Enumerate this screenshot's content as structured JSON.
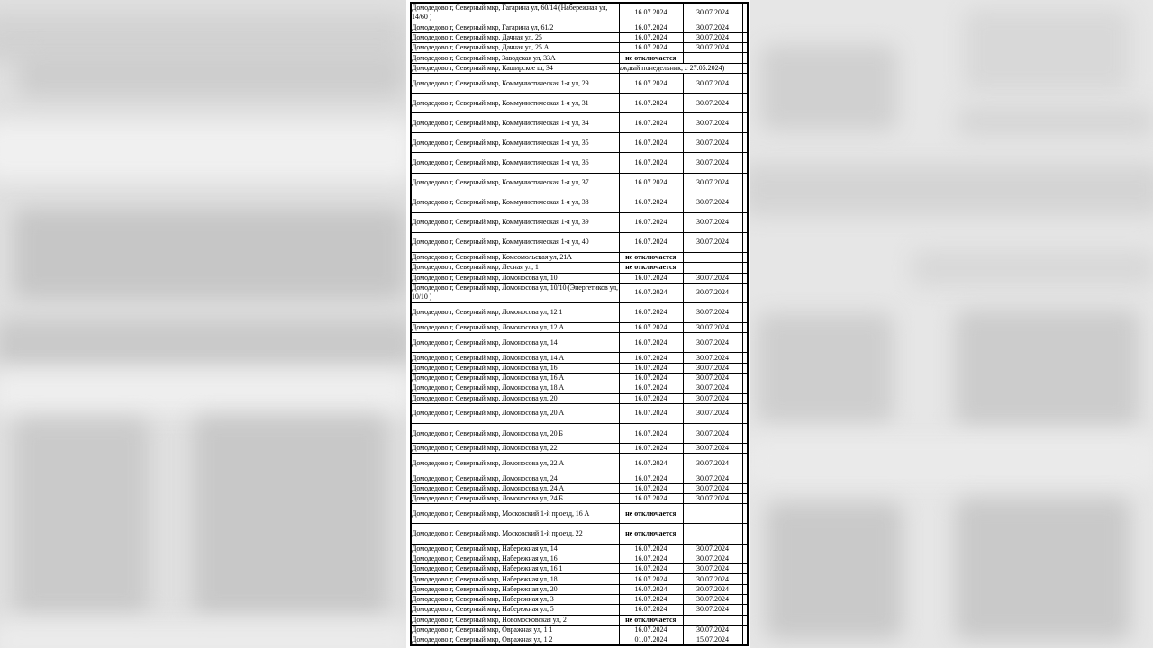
{
  "colors": {
    "table_border": "#000000",
    "table_background": "#ffffff",
    "text": "#000000",
    "backdrop_base": "#e2e2e2",
    "backdrop_blob_dark": "#c7c7c7",
    "backdrop_blob_light": "#efefef"
  },
  "table": {
    "rows": [
      {
        "address": "Домодедово г, Северный мкр, Гагарина ул, 60/14 (Набережная ул, 14/60  )",
        "start": "16.07.2024",
        "end": "30.07.2024",
        "tall": true
      },
      {
        "address": "Домодедово г, Северный мкр, Гагарина ул, 61/2",
        "start": "16.07.2024",
        "end": "30.07.2024"
      },
      {
        "address": "Домодедово г, Северный мкр, Дачная ул, 25",
        "start": "16.07.2024",
        "end": "30.07.2024"
      },
      {
        "address": "Домодедово г, Северный мкр, Дачная ул, 25 А",
        "start": "16.07.2024",
        "end": "30.07.2024"
      },
      {
        "address": "Домодедово г, Северный мкр, Заводская ул, 33А",
        "note": "не отключается"
      },
      {
        "address": "Домодедово г, Северный мкр, Каширское ш, 34",
        "note": "аждый понедельник, с 27.05.2024)",
        "note_span": 2
      },
      {
        "address": "Домодедово г, Северный мкр, Коммунистическая 1-я ул, 29",
        "start": "16.07.2024",
        "end": "30.07.2024",
        "tall": true
      },
      {
        "address": "Домодедово г, Северный мкр, Коммунистическая 1-я ул, 31",
        "start": "16.07.2024",
        "end": "30.07.2024",
        "tall": true
      },
      {
        "address": "Домодедово г, Северный мкр, Коммунистическая 1-я ул, 34",
        "start": "16.07.2024",
        "end": "30.07.2024",
        "tall": true
      },
      {
        "address": "Домодедово г, Северный мкр, Коммунистическая 1-я ул, 35",
        "start": "16.07.2024",
        "end": "30.07.2024",
        "tall": true
      },
      {
        "address": "Домодедово г, Северный мкр, Коммунистическая 1-я ул, 36",
        "start": "16.07.2024",
        "end": "30.07.2024",
        "tall": true
      },
      {
        "address": "Домодедово г, Северный мкр, Коммунистическая 1-я ул, 37",
        "start": "16.07.2024",
        "end": "30.07.2024",
        "tall": true
      },
      {
        "address": "Домодедово г, Северный мкр, Коммунистическая 1-я ул, 38",
        "start": "16.07.2024",
        "end": "30.07.2024",
        "tall": true
      },
      {
        "address": "Домодедово г, Северный мкр, Коммунистическая 1-я ул, 39",
        "start": "16.07.2024",
        "end": "30.07.2024",
        "tall": true
      },
      {
        "address": "Домодедово г, Северный мкр, Коммунистическая 1-я ул, 40",
        "start": "16.07.2024",
        "end": "30.07.2024",
        "tall": true
      },
      {
        "address": "Домодедово г, Северный мкр, Комсомольская ул, 21А",
        "note": "не отключается"
      },
      {
        "address": "Домодедово г, Северный мкр, Лесная ул, 1",
        "note": "не отключается"
      },
      {
        "address": "Домодедово г, Северный мкр, Ломоносова ул, 10",
        "start": "16.07.2024",
        "end": "30.07.2024"
      },
      {
        "address": "Домодедово г, Северный мкр, Ломоносова ул, 10/10 (Энергетиков ул, 10/10  )",
        "start": "16.07.2024",
        "end": "30.07.2024",
        "tall": true
      },
      {
        "address": "Домодедово г, Северный мкр, Ломоносова ул, 12 1",
        "start": "16.07.2024",
        "end": "30.07.2024",
        "tall": true
      },
      {
        "address": "Домодедово г, Северный мкр, Ломоносова ул, 12 А",
        "start": "16.07.2024",
        "end": "30.07.2024"
      },
      {
        "address": "Домодедово г, Северный мкр, Ломоносова ул, 14",
        "start": "16.07.2024",
        "end": "30.07.2024",
        "tall": true
      },
      {
        "address": "Домодедово г, Северный мкр, Ломоносова ул, 14 А",
        "start": "16.07.2024",
        "end": "30.07.2024"
      },
      {
        "address": "Домодедово г, Северный мкр, Ломоносова ул, 16",
        "start": "16.07.2024",
        "end": "30.07.2024"
      },
      {
        "address": "Домодедово г, Северный мкр, Ломоносова ул, 16 А",
        "start": "16.07.2024",
        "end": "30.07.2024"
      },
      {
        "address": "Домодедово г, Северный мкр, Ломоносова ул, 18 А",
        "start": "16.07.2024",
        "end": "30.07.2024"
      },
      {
        "address": "Домодедово г, Северный мкр, Ломоносова ул, 20",
        "start": "16.07.2024",
        "end": "30.07.2024"
      },
      {
        "address": "Домодедово г, Северный мкр, Ломоносова ул, 20 А",
        "start": "16.07.2024",
        "end": "30.07.2024",
        "tall": true
      },
      {
        "address": "Домодедово г, Северный мкр, Ломоносова ул, 20 Б",
        "start": "16.07.2024",
        "end": "30.07.2024",
        "tall": true
      },
      {
        "address": "Домодедово г, Северный мкр, Ломоносова ул, 22",
        "start": "16.07.2024",
        "end": "30.07.2024"
      },
      {
        "address": "Домодедово г, Северный мкр, Ломоносова ул, 22 А",
        "start": "16.07.2024",
        "end": "30.07.2024",
        "tall": true
      },
      {
        "address": "Домодедово г, Северный мкр, Ломоносова ул, 24",
        "start": "16.07.2024",
        "end": "30.07.2024"
      },
      {
        "address": "Домодедово г, Северный мкр, Ломоносова ул, 24 А",
        "start": "16.07.2024",
        "end": "30.07.2024"
      },
      {
        "address": "Домодедово г, Северный мкр, Ломоносова ул, 24 Б",
        "start": "16.07.2024",
        "end": "30.07.2024"
      },
      {
        "address": "Домодедово г, Северный мкр, Московский 1-й проезд, 16 А",
        "note": "не отключается",
        "tall": true
      },
      {
        "address": "Домодедово г, Северный мкр, Московский 1-й проезд, 22",
        "note": "не отключается",
        "tall": true
      },
      {
        "address": "Домодедово г, Северный мкр, Набережная ул, 14",
        "start": "16.07.2024",
        "end": "30.07.2024"
      },
      {
        "address": "Домодедово г, Северный мкр, Набережная ул, 16",
        "start": "16.07.2024",
        "end": "30.07.2024"
      },
      {
        "address": "Домодедово г, Северный мкр, Набережная ул, 16 1",
        "start": "16.07.2024",
        "end": "30.07.2024"
      },
      {
        "address": "Домодедово г, Северный мкр, Набережная ул, 18",
        "start": "16.07.2024",
        "end": "30.07.2024"
      },
      {
        "address": "Домодедово г, Северный мкр, Набережная ул, 20",
        "start": "16.07.2024",
        "end": "30.07.2024"
      },
      {
        "address": "Домодедово г, Северный мкр, Набережная ул, 3",
        "start": "16.07.2024",
        "end": "30.07.2024"
      },
      {
        "address": "Домодедово г, Северный мкр, Набережная ул, 5",
        "start": "16.07.2024",
        "end": "30.07.2024"
      },
      {
        "address": "Домодедово г, Северный мкр, Новомосковская ул, 2",
        "note": "не отключается"
      },
      {
        "address": "Домодедово г, Северный мкр, Овражная ул, 1 1",
        "start": "16.07.2024",
        "end": "30.07.2024"
      },
      {
        "address": "Домодедово г, Северный мкр, Овражная ул, 1 2",
        "start": "01.07.2024",
        "end": "15.07.2024"
      }
    ]
  }
}
